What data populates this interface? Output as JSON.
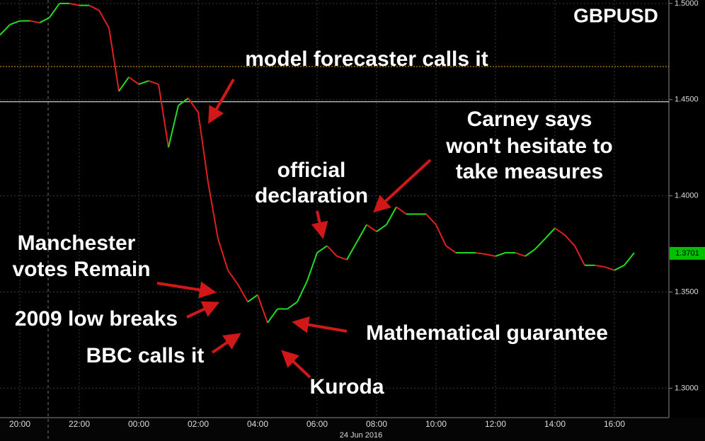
{
  "chart_data": {
    "type": "line",
    "title": "GBPUSD",
    "xlabel": "24 Jun 2016",
    "categories": [
      null,
      null,
      "20:00",
      null,
      null,
      null,
      null,
      null,
      "22:00",
      null,
      null,
      null,
      null,
      null,
      "00:00",
      null,
      null,
      null,
      null,
      null,
      "02:00",
      null,
      null,
      null,
      null,
      null,
      "04:00",
      null,
      null,
      null,
      null,
      null,
      "06:00",
      null,
      null,
      null,
      null,
      null,
      "08:00",
      null,
      null,
      null,
      null,
      null,
      "10:00",
      null,
      null,
      null,
      null,
      null,
      "12:00",
      null,
      null,
      null,
      null,
      null,
      "14:00",
      null,
      null,
      null,
      null,
      null,
      "16:00",
      null,
      null,
      null,
      null,
      null
    ],
    "values": [
      1.4836,
      1.489,
      1.4909,
      1.491,
      1.49,
      1.4927,
      1.5,
      1.5,
      1.499,
      1.499,
      1.4964,
      1.4872,
      1.4544,
      1.4617,
      1.458,
      1.4598,
      1.458,
      1.4252,
      1.447,
      1.4507,
      1.4434,
      1.4069,
      1.3777,
      1.3613,
      1.354,
      1.3449,
      1.3485,
      1.334,
      1.3412,
      1.3412,
      1.3449,
      1.3558,
      1.3704,
      1.374,
      1.3686,
      1.3668,
      1.3759,
      1.385,
      1.3814,
      1.385,
      1.3942,
      1.3905,
      1.3905,
      1.3905,
      1.385,
      1.374,
      1.3704,
      1.3704,
      1.3704,
      1.3697,
      1.3686,
      1.3704,
      1.3704,
      1.3686,
      1.3723,
      1.3777,
      1.3832,
      1.3796,
      1.374,
      1.3639,
      1.3639,
      1.3631,
      1.3613,
      1.3639,
      1.3704,
      null,
      null,
      null
    ],
    "up_color": "#22dd22",
    "down_color": "#e02020",
    "ylim": [
      1.2847,
      1.5018
    ],
    "yticks": [
      {
        "value": 1.3,
        "label": "1.3000"
      },
      {
        "value": 1.35,
        "label": "1.3500"
      },
      {
        "value": 1.4,
        "label": "1.4000"
      },
      {
        "value": 1.45,
        "label": "1.4500"
      },
      {
        "value": 1.5,
        "label": "1.5000"
      }
    ],
    "grid": true,
    "hlines": [
      {
        "value": 1.4672,
        "color": "#f0a030"
      },
      {
        "value": 1.4489,
        "color": "#ffffff"
      }
    ],
    "last_price": {
      "value": 1.3701,
      "label": "1.3701",
      "color": "#00c000"
    },
    "annotations": [
      [
        "model forecaster calls it"
      ],
      [
        "official",
        "declaration"
      ],
      [
        "Carney says",
        "won't hesitate to",
        "take measures"
      ],
      [
        "Manchester",
        "votes Remain"
      ],
      [
        "2009 low breaks"
      ],
      [
        "BBC calls it"
      ],
      [
        "Mathematical guarantee"
      ],
      [
        "Kuroda"
      ]
    ]
  }
}
